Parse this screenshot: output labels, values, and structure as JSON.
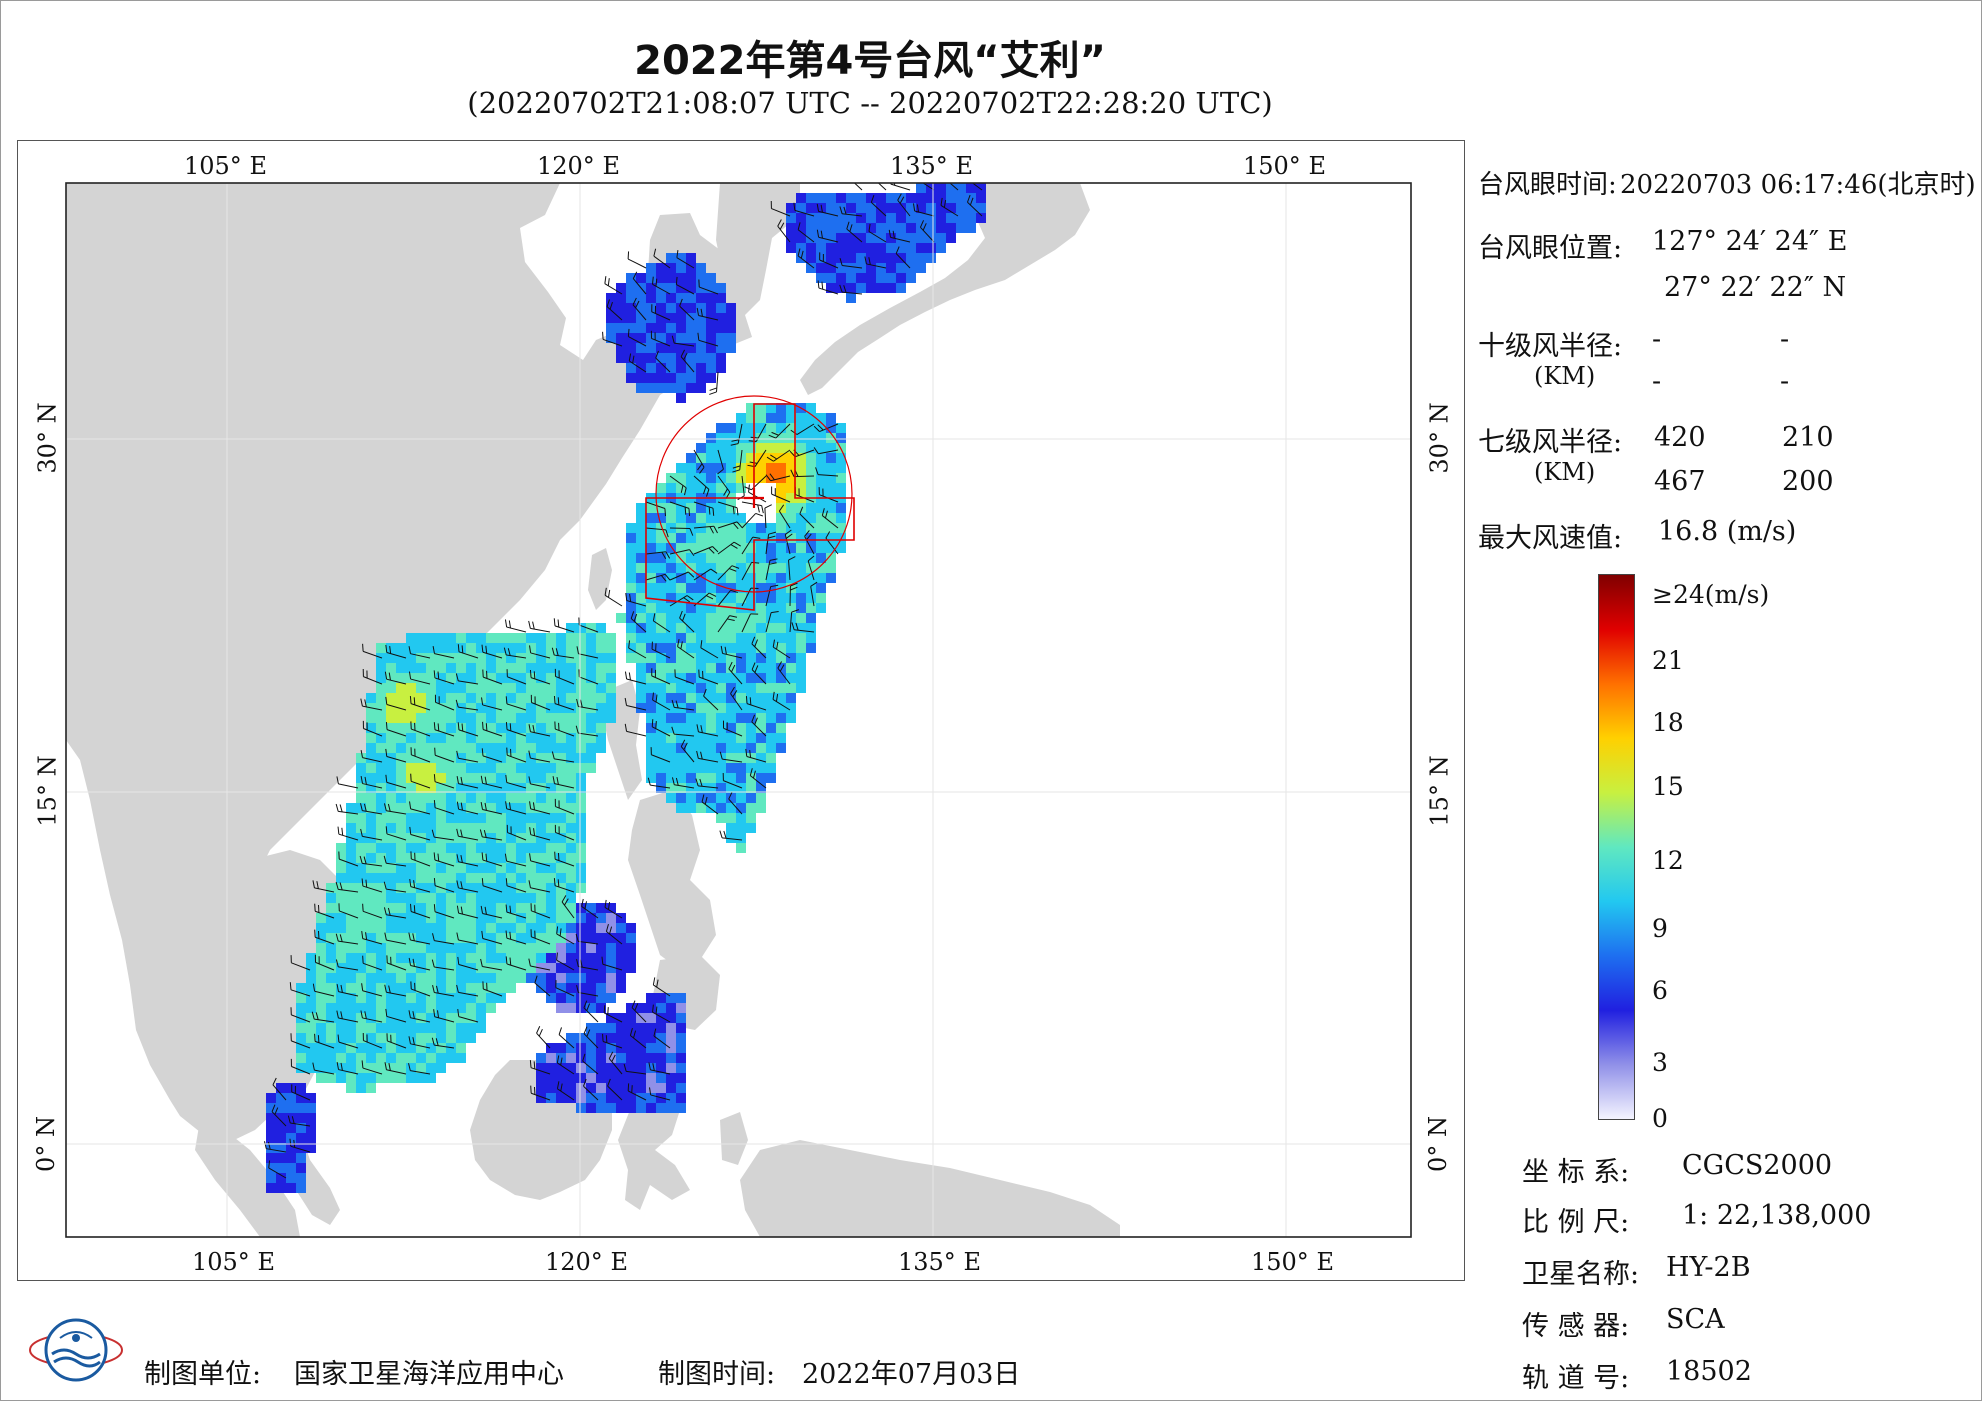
{
  "header": {
    "title": "2022年第4号台风“艾利”",
    "subtitle": "(20220702T21:08:07 UTC -- 20220702T22:28:20 UTC)"
  },
  "map": {
    "lon_ticks": [
      "105° E",
      "120° E",
      "135° E",
      "150° E"
    ],
    "lat_ticks": [
      "30° N",
      "15° N",
      "0° N"
    ],
    "colors": {
      "land": "#d4d4d4",
      "ocean": "#ffffff",
      "eye_marker": "#e00000",
      "wind_barb": "#111111"
    }
  },
  "typhoon_info": {
    "eye_time_label": "台风眼时间:",
    "eye_time_value": "20220703 06:17:46(北京时)",
    "eye_position_label": "台风眼位置:",
    "eye_lon": "127° 24′ 24″ E",
    "eye_lat": "27° 22′ 22″ N",
    "r10_label": "十级风半径:",
    "r10_unit": "(KM)",
    "r10_values": [
      "-",
      "-",
      "-",
      "-"
    ],
    "r7_label": "七级风半径:",
    "r7_unit": "(KM)",
    "r7_values": [
      "420",
      "210",
      "467",
      "200"
    ],
    "max_wind_label": "最大风速值:",
    "max_wind_value": "16.8  (m/s)"
  },
  "colorbar": {
    "top_label": "≥24(m/s)",
    "ticks": [
      "21",
      "18",
      "15",
      "12",
      "9",
      "6",
      "3",
      "0"
    ],
    "stops": [
      "#f4f4ff",
      "#9090e8",
      "#2020e0",
      "#1e6ff0",
      "#22c8f0",
      "#60e8c0",
      "#c8f040",
      "#ffd000",
      "#ff7000",
      "#e00000",
      "#800000"
    ]
  },
  "meta": {
    "crs_label": "坐 标 系:",
    "crs_value": "CGCS2000",
    "scale_label": "比 例 尺:",
    "scale_value": "1: 22,138,000",
    "satellite_label": "卫星名称:",
    "satellite_value": "HY-2B",
    "sensor_label": "传 感 器:",
    "sensor_value": "SCA",
    "orbit_label": "轨 道 号:",
    "orbit_value": "18502"
  },
  "footer": {
    "producer_label": "制图单位:",
    "producer_value": "国家卫星海洋应用中心",
    "date_label": "制图时间:",
    "date_value": "2022年07月03日"
  }
}
